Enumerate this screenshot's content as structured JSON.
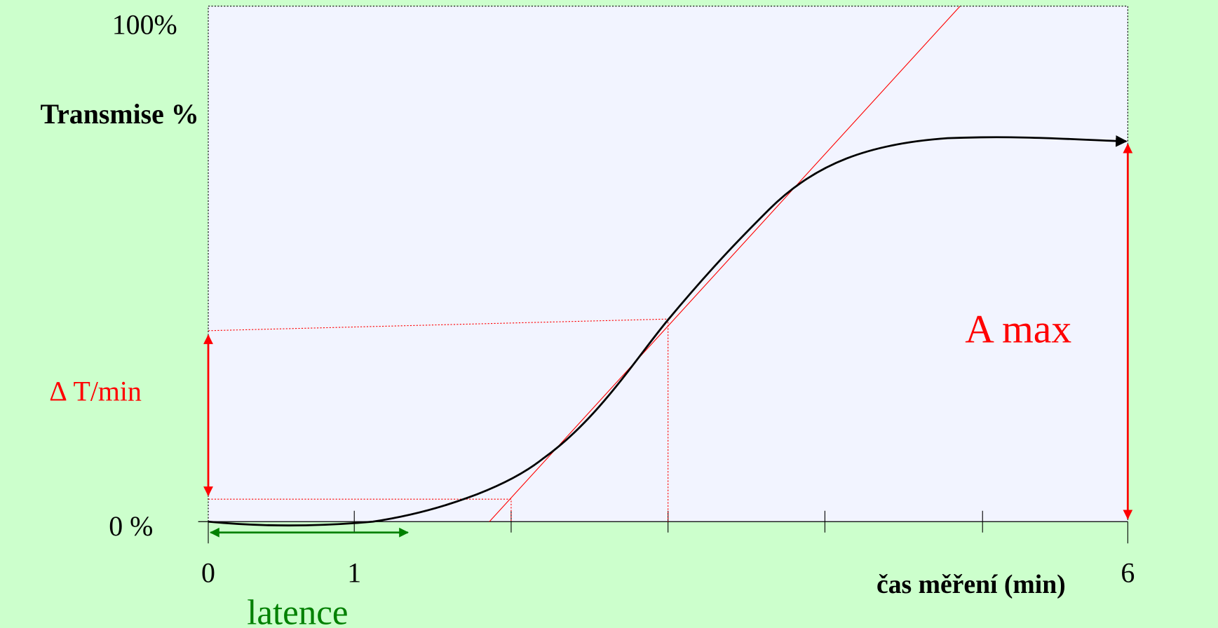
{
  "axes": {
    "y_label": "Transmise %",
    "y_top": "100%",
    "y_bottom": "0 %",
    "x_label": "čas měření (min)",
    "x_ticks": [
      "0",
      "1",
      "6"
    ]
  },
  "annotations": {
    "slope": "∆ T/min",
    "max": "A max",
    "lag": "latence"
  }
}
